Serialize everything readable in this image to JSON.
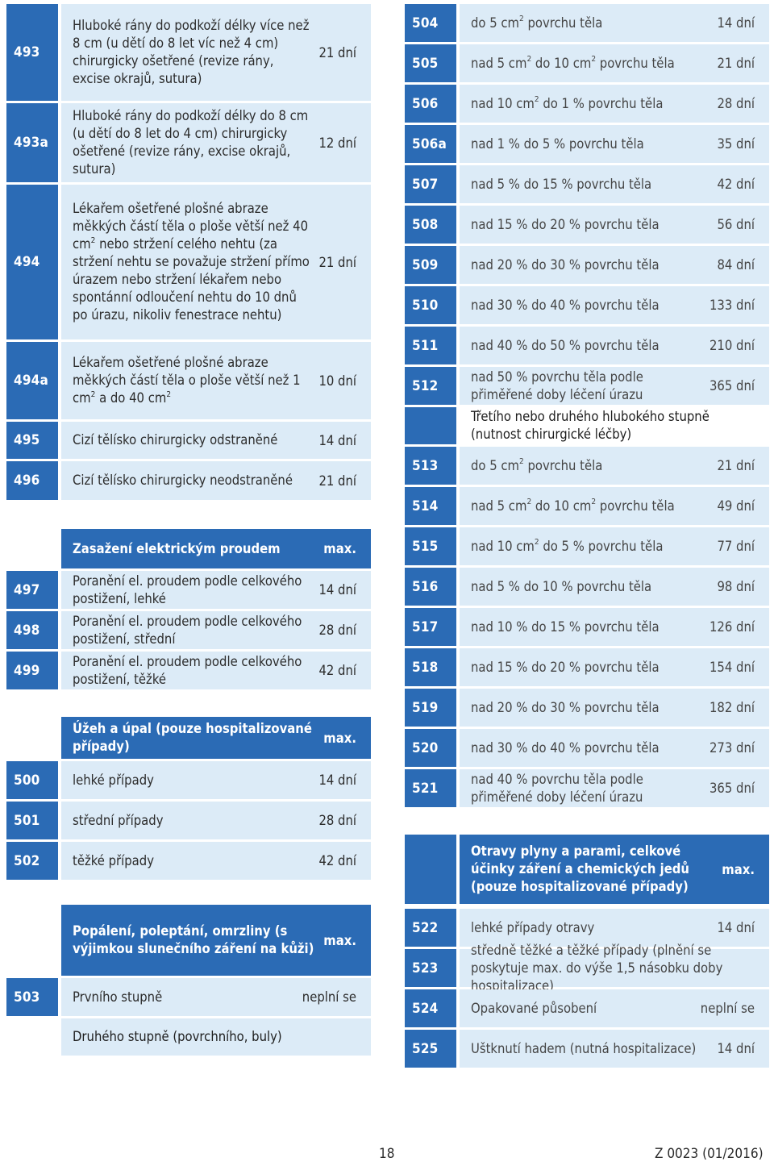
{
  "left": {
    "rows": [
      {
        "code": "493",
        "desc": "Hluboké rány do podkoží délky více než 8 cm (u dětí do 8 let víc než 4 cm) chirurgicky ošetřené (revize rány, excise okrajů, sutura)",
        "days": "21 dní",
        "h": 120
      },
      {
        "code": "493a",
        "desc": "Hluboké rány do podkoží délky do 8 cm (u dětí do 8 let do 4 cm) chirurgicky ošetřené (revize rány, excise okrajů, sutura)",
        "days": "12 dní",
        "h": 98
      },
      {
        "code": "494",
        "desc": "Lékařem ošetřené plošné abraze měkkých částí těla o ploše větší než 40 cm² nebo stržení celého nehtu (za stržení nehtu se považuje stržení přímo úrazem nebo stržení lékařem nebo spontánní odloučení nehtu do 10 dnů po úrazu, nikoliv fenestrace nehtu)",
        "days": "21 dní",
        "h": 192
      },
      {
        "code": "494a",
        "desc": "Lékařem ošetřené plošné abraze měkkých částí těla o ploše větší než 1 cm² a do 40 cm²",
        "days": "10 dní",
        "h": 96
      },
      {
        "code": "495",
        "desc": "Cizí tělísko chirurgicky odstraněné",
        "days": "14 dní",
        "h": 46
      },
      {
        "code": "496",
        "desc": "Cizí tělísko chirurgicky neodstraněné",
        "days": "21 dní",
        "h": 48
      }
    ],
    "electric": {
      "header": {
        "title": "Zasažení elektrickým proudem",
        "max": "max."
      },
      "rows": [
        {
          "code": "497",
          "desc": "Poranění el. proudem podle celkového postižení, lehké",
          "days": "14 dní"
        },
        {
          "code": "498",
          "desc": "Poranění el. proudem podle celkového postižení, střední",
          "days": "28 dní"
        },
        {
          "code": "499",
          "desc": "Poranění el. proudem podle celkového postižení, těžké",
          "days": "42 dní"
        }
      ]
    },
    "heat": {
      "header": {
        "title": "Úžeh a úpal (pouze hospitalizované případy)",
        "max": "max."
      },
      "rows": [
        {
          "code": "500",
          "desc": "lehké případy",
          "days": "14 dní"
        },
        {
          "code": "501",
          "desc": "střední případy",
          "days": "28 dní"
        },
        {
          "code": "502",
          "desc": "těžké případy",
          "days": "42 dní"
        }
      ]
    },
    "burns": {
      "header": {
        "title": "Popálení, poleptání, omrzliny (s výjimkou slunečního záření na kůži)",
        "max": "max."
      },
      "rows": [
        {
          "code": "503",
          "desc": "Prvního stupně",
          "days": "neplní se"
        }
      ],
      "subheading": "Druhého stupně (povrchního, buly)"
    }
  },
  "right": {
    "rows_a": [
      {
        "code": "504",
        "desc": "do 5 cm² povrchu těla",
        "days": "14 dní"
      },
      {
        "code": "505",
        "desc": "nad 5 cm² do 10 cm² povrchu těla",
        "days": "21 dní"
      },
      {
        "code": "506",
        "desc": "nad 10 cm² do 1 % povrchu těla",
        "days": "28 dní"
      },
      {
        "code": "506a",
        "desc": "nad 1 % do 5 % povrchu těla",
        "days": "35 dní"
      },
      {
        "code": "507",
        "desc": "nad 5 % do 15 % povrchu těla",
        "days": "42 dní"
      },
      {
        "code": "508",
        "desc": "nad 15 % do 20 % povrchu těla",
        "days": "56 dní"
      },
      {
        "code": "509",
        "desc": "nad 20 % do 30 % povrchu těla",
        "days": "84 dní"
      },
      {
        "code": "510",
        "desc": "nad 30 % do 40 % povrchu těla",
        "days": "133 dní"
      },
      {
        "code": "511",
        "desc": "nad 40 % do 50 % povrchu těla",
        "days": "210 dní"
      },
      {
        "code": "512",
        "desc": "nad 50 % povrchu těla podle přiměřené doby léčení úrazu",
        "days": "365 dní"
      }
    ],
    "subheading": "Třetího nebo druhého hlubokého stupně (nutnost chirurgické léčby)",
    "rows_b": [
      {
        "code": "513",
        "desc": "do 5 cm² povrchu těla",
        "days": "21 dní"
      },
      {
        "code": "514",
        "desc": "nad 5 cm² do 10 cm² povrchu těla",
        "days": "49 dní"
      },
      {
        "code": "515",
        "desc": "nad 10 cm² do 5 % povrchu těla",
        "days": "77 dní"
      },
      {
        "code": "516",
        "desc": "nad 5 % do 10 % povrchu těla",
        "days": "98 dní"
      },
      {
        "code": "517",
        "desc": "nad 10 % do 15 % povrchu těla",
        "days": "126 dní"
      },
      {
        "code": "518",
        "desc": "nad 15 % do 20 % povrchu těla",
        "days": "154 dní"
      },
      {
        "code": "519",
        "desc": "nad 20 % do 30 % povrchu těla",
        "days": "182 dní"
      },
      {
        "code": "520",
        "desc": "nad 30 % do 40 % povrchu těla",
        "days": "273 dní"
      },
      {
        "code": "521",
        "desc": "nad 40 % povrchu těla podle přiměřené doby léčení úrazu",
        "days": "365 dní"
      }
    ],
    "poison": {
      "header": {
        "title": "Otravy plyny a parami, celkové účinky záření a chemických jedů (pouze hospitalizované případy)",
        "max": "max."
      },
      "rows": [
        {
          "code": "522",
          "desc": "lehké případy otravy",
          "days": "14 dní"
        },
        {
          "code": "523",
          "desc": "středně těžké a těžké případy (plnění se poskytuje max. do výše 1,5 násobku doby hospitalizace)",
          "days": ""
        },
        {
          "code": "524",
          "desc": "Opakované působení",
          "days": "neplní se"
        },
        {
          "code": "525",
          "desc": "Uštknutí hadem (nutná hospitalizace)",
          "days": "14 dní"
        }
      ]
    }
  },
  "footer": {
    "page_number": "18",
    "doc_code": "Z 0023 (01/2016)"
  }
}
